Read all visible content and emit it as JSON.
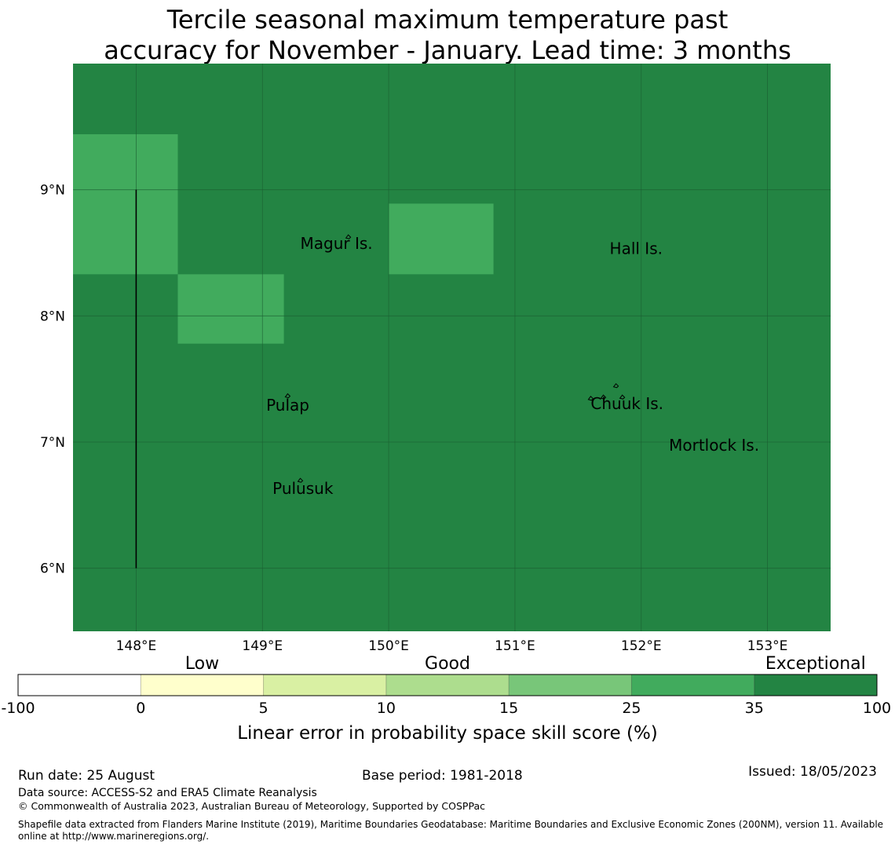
{
  "title": {
    "line1": "Tercile seasonal maximum temperature past",
    "line2": "accuracy for November - January. Lead time: 3 months"
  },
  "map": {
    "lon_range": [
      147.5,
      153.5
    ],
    "lat_range": [
      5.5,
      10.0
    ],
    "background_category": "Exceptional",
    "background_color": "#238443",
    "x_ticks": [
      "148°E",
      "149°E",
      "150°E",
      "151°E",
      "152°E",
      "153°E"
    ],
    "y_ticks": [
      "9°N",
      "8°N",
      "7°N",
      "6°N"
    ],
    "x_tick_values": [
      148,
      149,
      150,
      151,
      152,
      153
    ],
    "y_tick_values": [
      9,
      8,
      7,
      6
    ],
    "gridlines": true,
    "grid_color": "#1b5e32",
    "cells": [
      {
        "lon_min": 147.5,
        "lon_max": 148.33,
        "lat_min": 8.33,
        "lat_max": 9.44,
        "color": "#41ab5d"
      },
      {
        "lon_min": 148.33,
        "lon_max": 149.17,
        "lat_min": 7.78,
        "lat_max": 8.33,
        "color": "#41ab5d"
      },
      {
        "lon_min": 150.0,
        "lon_max": 150.83,
        "lat_min": 8.33,
        "lat_max": 8.89,
        "color": "#41ab5d"
      }
    ],
    "boundary_line": {
      "lon": 148.0,
      "lat_min": 6.0,
      "lat_max": 9.0
    },
    "places": [
      {
        "name": "Magur Is.",
        "lon": 149.3,
        "lat": 8.53
      },
      {
        "name": "Hall Is.",
        "lon": 151.75,
        "lat": 8.49
      },
      {
        "name": "Pulap",
        "lon": 149.03,
        "lat": 7.25
      },
      {
        "name": "Chuuk Is.",
        "lon": 151.6,
        "lat": 7.26
      },
      {
        "name": "Mortlock Is.",
        "lon": 152.22,
        "lat": 6.93
      },
      {
        "name": "Pulusuk",
        "lon": 149.08,
        "lat": 6.59
      }
    ],
    "islands": [
      {
        "lon": 149.68,
        "lat": 8.63
      },
      {
        "lon": 149.2,
        "lat": 7.37
      },
      {
        "lon": 149.3,
        "lat": 6.7
      },
      {
        "lon": 151.6,
        "lat": 7.35
      },
      {
        "lon": 151.7,
        "lat": 7.36
      },
      {
        "lon": 151.85,
        "lat": 7.36
      },
      {
        "lon": 151.8,
        "lat": 7.45
      }
    ]
  },
  "colorbar": {
    "category_labels": [
      {
        "label": "Low",
        "at_bin": 1.5
      },
      {
        "label": "Good",
        "at_bin": 3.5
      },
      {
        "label": "Exceptional",
        "at_bin": 6.5
      }
    ],
    "ticks": [
      "-100",
      "0",
      "5",
      "10",
      "15",
      "25",
      "35",
      "100"
    ],
    "colors": [
      "#ffffff",
      "#ffffcc",
      "#d9f0a3",
      "#addd8e",
      "#78c679",
      "#41ab5d",
      "#238443"
    ],
    "label": "Linear error in probability space skill score (%)"
  },
  "footer": {
    "run_date": "Run date: 25 August",
    "base_period": "Base period: 1981-2018",
    "issued": "Issued: 18/05/2023",
    "data_source": "Data source: ACCESS-S2 and ERA5 Climate Reanalysis",
    "copyright": "© Commonwealth of Australia 2023, Australian Bureau of Meteorology, Supported by COSPPac",
    "shapefile_line1": "Shapefile data extracted from Flanders Marine Institute (2019), Maritime Boundaries Geodatabase: Maritime Boundaries and Exclusive Economic Zones (200NM), version 11. Available",
    "shapefile_line2": "online at http://www.marineregions.org/."
  }
}
